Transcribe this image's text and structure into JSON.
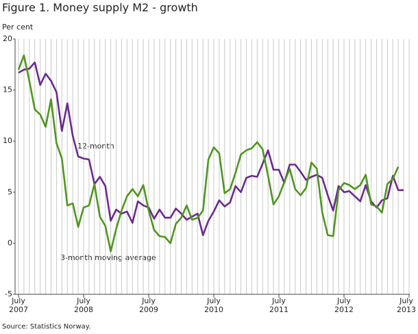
{
  "chart_data": {
    "type": "line",
    "title": "Figure 1. Money supply M2 - growth",
    "ylabel": "Per cent",
    "source": "Source: Statistics Norway.",
    "annotations": [
      "12-month",
      "3-month moving average"
    ],
    "x": [
      "2007-07",
      "2007-08",
      "2007-09",
      "2007-10",
      "2007-11",
      "2007-12",
      "2008-01",
      "2008-02",
      "2008-03",
      "2008-04",
      "2008-05",
      "2008-06",
      "2008-07",
      "2008-08",
      "2008-09",
      "2008-10",
      "2008-11",
      "2008-12",
      "2009-01",
      "2009-02",
      "2009-03",
      "2009-04",
      "2009-05",
      "2009-06",
      "2009-07",
      "2009-08",
      "2009-09",
      "2009-10",
      "2009-11",
      "2009-12",
      "2010-01",
      "2010-02",
      "2010-03",
      "2010-04",
      "2010-05",
      "2010-06",
      "2010-07",
      "2010-08",
      "2010-09",
      "2010-10",
      "2010-11",
      "2010-12",
      "2011-01",
      "2011-02",
      "2011-03",
      "2011-04",
      "2011-05",
      "2011-06",
      "2011-07",
      "2011-08",
      "2011-09",
      "2011-10",
      "2011-11",
      "2011-12",
      "2012-01",
      "2012-02",
      "2012-03",
      "2012-04",
      "2012-05",
      "2012-06",
      "2012-07",
      "2012-08",
      "2012-09",
      "2012-10",
      "2012-11",
      "2012-12",
      "2013-01",
      "2013-02",
      "2013-03",
      "2013-04",
      "2013-05",
      "2013-06"
    ],
    "series": [
      {
        "name": "12-month",
        "color": "#6a2a8e",
        "values": [
          16.7,
          17.0,
          17.1,
          17.7,
          15.5,
          16.6,
          15.9,
          14.8,
          11.0,
          13.7,
          10.5,
          8.5,
          8.3,
          8.2,
          5.8,
          6.5,
          5.6,
          2.2,
          3.3,
          2.9,
          3.1,
          2.0,
          4.1,
          3.7,
          3.5,
          2.4,
          3.3,
          2.5,
          2.5,
          3.4,
          2.9,
          2.3,
          2.6,
          2.9,
          0.8,
          2.2,
          3.1,
          4.2,
          3.6,
          4.0,
          5.6,
          5.0,
          6.4,
          6.6,
          6.5,
          7.8,
          9.1,
          7.2,
          7.2,
          5.9,
          7.7,
          7.7,
          7.0,
          6.2,
          6.5,
          6.7,
          6.4,
          4.7,
          3.2,
          5.6,
          5.0,
          5.1,
          4.6,
          4.1,
          5.7,
          4.1,
          3.5,
          4.2,
          4.4,
          6.6,
          5.2,
          5.2
        ]
      },
      {
        "name": "3-month moving average",
        "color": "#4e961e",
        "values": [
          17.0,
          18.4,
          15.9,
          13.1,
          12.6,
          11.4,
          14.1,
          9.8,
          8.3,
          3.7,
          3.9,
          1.6,
          3.5,
          3.7,
          5.8,
          2.6,
          1.7,
          -0.8,
          1.4,
          3.2,
          4.6,
          5.3,
          4.6,
          5.7,
          3.2,
          1.3,
          0.7,
          0.6,
          0.0,
          1.9,
          2.5,
          3.7,
          2.3,
          2.5,
          3.2,
          8.2,
          9.4,
          8.8,
          4.9,
          5.3,
          6.9,
          8.7,
          9.1,
          9.3,
          9.9,
          9.2,
          6.6,
          3.8,
          4.6,
          6.0,
          7.3,
          5.3,
          4.7,
          5.4,
          7.9,
          7.3,
          3.0,
          0.8,
          0.7,
          5.2,
          5.9,
          5.7,
          5.3,
          5.7,
          6.7,
          3.8,
          3.6,
          3.0,
          5.8,
          6.3,
          7.5,
          null
        ]
      }
    ],
    "xlim": [
      "2007-07",
      "2013-07"
    ],
    "xticks": [
      {
        "value": "2007-07",
        "label": "July 2007"
      },
      {
        "value": "2008-07",
        "label": "July 2008"
      },
      {
        "value": "2009-07",
        "label": "July 2009"
      },
      {
        "value": "2010-07",
        "label": "July 2010"
      },
      {
        "value": "2011-07",
        "label": "July 2011"
      },
      {
        "value": "2012-07",
        "label": "July 2012"
      },
      {
        "value": "2013-07",
        "label": "July 2013"
      }
    ],
    "ylim": [
      -5,
      20
    ],
    "yticks": [
      -5,
      0,
      5,
      10,
      15,
      20
    ],
    "grid": true
  }
}
